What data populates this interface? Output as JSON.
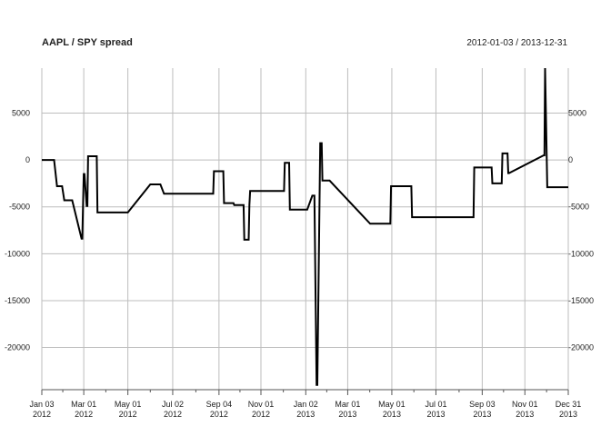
{
  "chart_data": {
    "type": "line",
    "title": "AAPL / SPY spread",
    "date_range": "2012-01-03 / 2013-12-31",
    "xlabel": "",
    "ylabel": "",
    "grid": true,
    "line_color": "#000000",
    "grid_color": "#bdbdbd",
    "xlim": [
      "2012-01-03",
      "2013-12-31"
    ],
    "ylim": [
      -24500,
      9800
    ],
    "y_ticks": [
      5000,
      0,
      -5000,
      -10000,
      -15000,
      -20000
    ],
    "y_tick_labels": [
      "5000",
      "0",
      "-5000",
      "-10000",
      "-15000",
      "-20000"
    ],
    "x_ticks": [
      {
        "date": "2012-01-03",
        "line1": "Jan 03",
        "line2": "2012"
      },
      {
        "date": "2012-03-01",
        "line1": "Mar 01",
        "line2": "2012"
      },
      {
        "date": "2012-05-01",
        "line1": "May 01",
        "line2": "2012"
      },
      {
        "date": "2012-07-02",
        "line1": "Jul 02",
        "line2": "2012"
      },
      {
        "date": "2012-09-04",
        "line1": "Sep 04",
        "line2": "2012"
      },
      {
        "date": "2012-11-01",
        "line1": "Nov 01",
        "line2": "2012"
      },
      {
        "date": "2013-01-02",
        "line1": "Jan 02",
        "line2": "2013"
      },
      {
        "date": "2013-03-01",
        "line1": "Mar 01",
        "line2": "2013"
      },
      {
        "date": "2013-05-01",
        "line1": "May 01",
        "line2": "2013"
      },
      {
        "date": "2013-07-01",
        "line1": "Jul 01",
        "line2": "2013"
      },
      {
        "date": "2013-09-03",
        "line1": "Sep 03",
        "line2": "2013"
      },
      {
        "date": "2013-11-01",
        "line1": "Nov 01",
        "line2": "2013"
      },
      {
        "date": "2013-12-31",
        "line1": "Dec 31",
        "line2": "2013"
      }
    ],
    "series": [
      {
        "x": [
          "2012-01-03",
          "2012-01-20",
          "2012-01-24",
          "2012-01-31",
          "2012-02-03",
          "2012-02-14",
          "2012-02-27",
          "2012-02-28",
          "2012-03-01",
          "2012-03-02",
          "2012-03-05",
          "2012-03-06",
          "2012-03-07",
          "2012-03-08",
          "2012-03-19",
          "2012-03-20",
          "2012-03-21",
          "2012-04-20",
          "2012-04-23",
          "2012-04-24",
          "2012-05-01",
          "2012-06-01",
          "2012-06-04",
          "2012-06-14",
          "2012-06-15",
          "2012-06-20",
          "2012-08-24",
          "2012-08-27",
          "2012-08-28",
          "2012-09-10",
          "2012-09-11",
          "2012-09-13",
          "2012-09-24",
          "2012-09-25",
          "2012-10-08",
          "2012-10-09",
          "2012-10-10",
          "2012-10-15",
          "2012-10-16",
          "2012-10-17",
          "2012-11-30",
          "2012-12-03",
          "2012-12-04",
          "2012-12-10",
          "2012-12-11",
          "2013-01-03",
          "2013-01-04",
          "2013-01-11",
          "2013-01-14",
          "2013-01-17",
          "2013-01-18",
          "2013-01-22",
          "2013-01-23",
          "2013-01-24",
          "2013-01-25",
          "2013-01-28",
          "2013-02-01",
          "2013-02-04",
          "2013-04-01",
          "2013-04-02",
          "2013-04-29",
          "2013-04-30",
          "2013-05-28",
          "2013-05-29",
          "2013-08-20",
          "2013-08-21",
          "2013-08-22",
          "2013-08-23",
          "2013-09-16",
          "2013-09-17",
          "2013-09-30",
          "2013-10-01",
          "2013-10-08",
          "2013-10-09",
          "2013-10-10",
          "2013-11-27",
          "2013-11-28",
          "2013-11-29",
          "2013-12-02",
          "2013-12-31"
        ],
        "y": [
          0,
          0,
          -2800,
          -2800,
          -4300,
          -4300,
          -8400,
          -8400,
          -1500,
          -1500,
          -4900,
          -4900,
          400,
          400,
          400,
          -5600,
          -5600,
          -5600,
          -5600,
          -5600,
          -5600,
          -2600,
          -2600,
          -2600,
          -2600,
          -3600,
          -3600,
          -3600,
          -1200,
          -1200,
          -4600,
          -4600,
          -4600,
          -4800,
          -4800,
          -8500,
          -8500,
          -8500,
          -4800,
          -3300,
          -3300,
          -3300,
          -300,
          -300,
          -5300,
          -5300,
          -5300,
          -3800,
          -3800,
          -24000,
          -24000,
          1800,
          1800,
          1800,
          -2200,
          -2200,
          -2200,
          -2200,
          -6800,
          -6800,
          -6800,
          -2800,
          -2800,
          -6100,
          -6100,
          -6100,
          -6100,
          -800,
          -800,
          -2500,
          -2500,
          700,
          700,
          -1400,
          -1400,
          500,
          500,
          9800,
          -2900,
          -2900
        ]
      }
    ]
  }
}
